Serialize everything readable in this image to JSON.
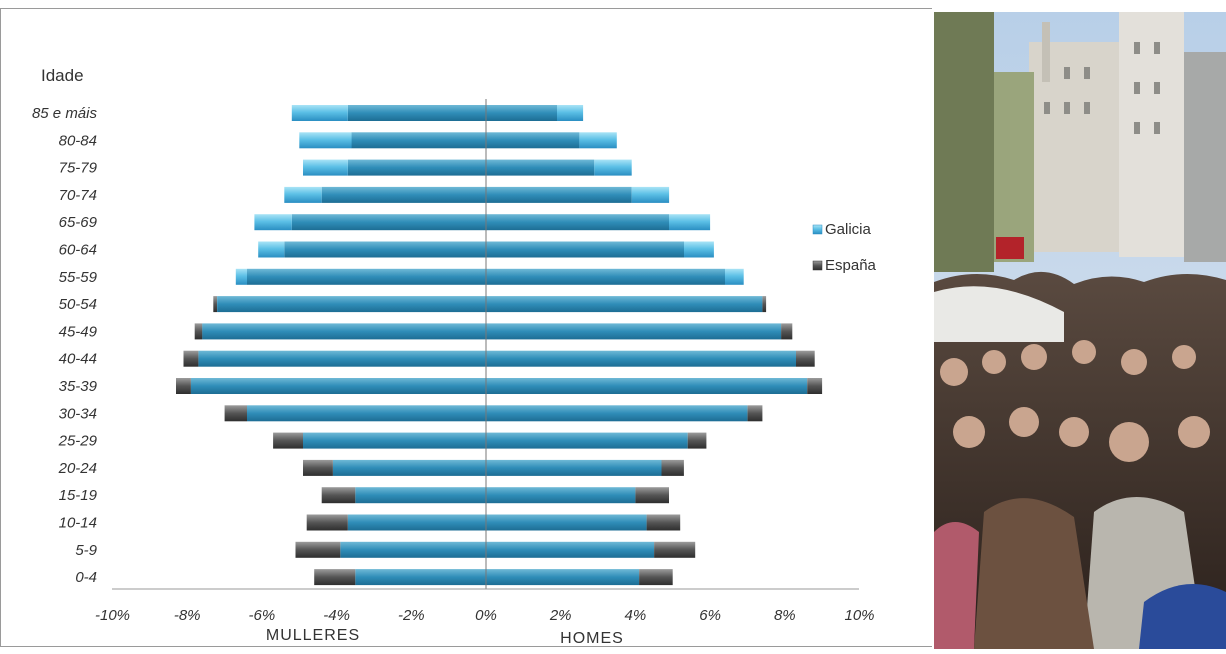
{
  "chart_data": {
    "type": "bar",
    "orientation": "horizontal",
    "y_title": "Idade",
    "categories": [
      "85 e máis",
      "80-84",
      "75-79",
      "70-74",
      "65-69",
      "60-64",
      "55-59",
      "50-54",
      "45-49",
      "40-44",
      "35-39",
      "30-34",
      "25-29",
      "20-24",
      "15-19",
      "10-14",
      "5-9",
      "0-4"
    ],
    "series": [
      {
        "name": "Galicia",
        "color": "#6ccbea",
        "women": [
          5.2,
          5.0,
          4.9,
          5.4,
          6.2,
          6.1,
          6.7,
          7.2,
          7.6,
          7.7,
          7.9,
          6.4,
          4.9,
          4.1,
          3.5,
          3.7,
          3.9,
          3.5
        ],
        "men": [
          2.6,
          3.5,
          3.9,
          4.9,
          6.0,
          6.1,
          6.9,
          7.4,
          7.9,
          8.3,
          8.6,
          7.0,
          5.4,
          4.7,
          4.0,
          4.3,
          4.5,
          4.1
        ]
      },
      {
        "name": "España",
        "color": "#555555",
        "women": [
          3.7,
          3.6,
          3.7,
          4.4,
          5.2,
          5.4,
          6.4,
          7.3,
          7.8,
          8.1,
          8.3,
          7.0,
          5.7,
          4.9,
          4.4,
          4.8,
          5.1,
          4.6
        ],
        "men": [
          1.9,
          2.5,
          2.9,
          3.9,
          4.9,
          5.3,
          6.4,
          7.5,
          8.2,
          8.8,
          9.0,
          7.4,
          5.9,
          5.3,
          4.9,
          5.2,
          5.6,
          5.0
        ]
      }
    ],
    "xlim": [
      -10,
      10
    ],
    "x_ticks": [
      "-10%",
      "-8%",
      "-6%",
      "-4%",
      "-2%",
      "0%",
      "2%",
      "4%",
      "6%",
      "8%",
      "10%"
    ],
    "xlabel_left": "MULLERES",
    "xlabel_right": "HOMES",
    "legend": [
      "Galicia",
      "España"
    ],
    "legend_position": "right",
    "grid": false
  },
  "photo": {
    "description_icon": "crowd-photo",
    "sky": "#c9d8ea",
    "building": "#d9d6cf",
    "crowd_dark": "#3a2a22"
  }
}
